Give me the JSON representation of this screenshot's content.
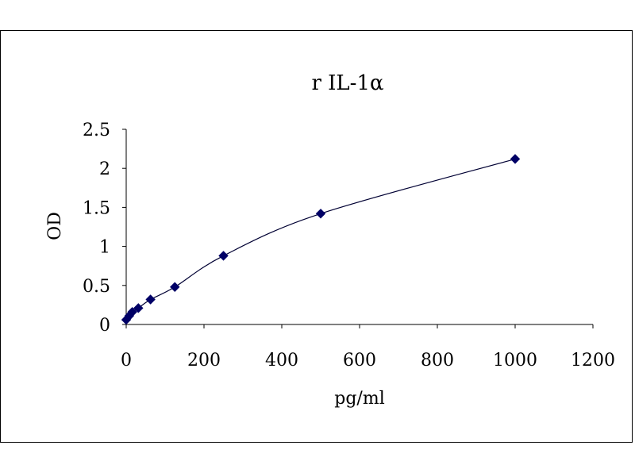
{
  "chart_data": {
    "type": "line",
    "title": "r IL-1α",
    "xlabel": "pg/ml",
    "ylabel": "OD",
    "xlim": [
      0,
      1200
    ],
    "ylim": [
      0,
      2.5
    ],
    "x_ticks": [
      "0",
      "200",
      "400",
      "600",
      "800",
      "1000",
      "1200"
    ],
    "y_ticks": [
      "0",
      "0.5",
      "1",
      "1.5",
      "2",
      "2.5"
    ],
    "grid": false,
    "legend": "none",
    "marker": "diamond",
    "colors": {
      "marker": "#000066",
      "line": "#000033"
    },
    "series": [
      {
        "x": [
          0,
          7.8,
          15.6,
          31.25,
          62.5,
          125,
          250,
          500,
          1000
        ],
        "y": [
          0.06,
          0.11,
          0.16,
          0.21,
          0.32,
          0.48,
          0.88,
          1.42,
          2.12
        ]
      }
    ]
  }
}
